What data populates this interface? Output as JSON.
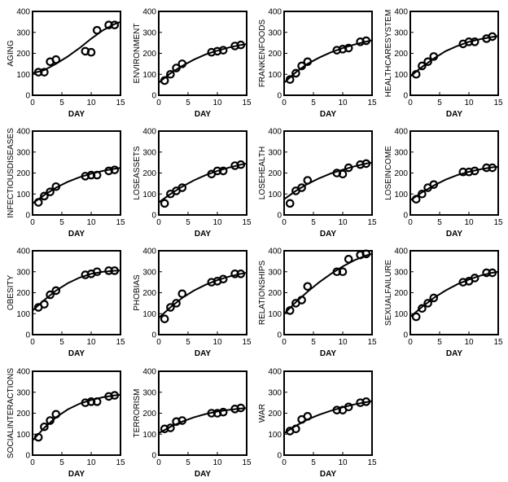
{
  "chart_data": [
    {
      "type": "scatter",
      "ylabel": "AGING",
      "xlabel": "DAY",
      "xlim": [
        0,
        15
      ],
      "ylim": [
        0,
        400
      ],
      "xticks": [
        0,
        5,
        10,
        15
      ],
      "yticks": [
        0,
        100,
        200,
        300,
        400
      ],
      "points": [
        [
          1,
          110
        ],
        [
          2,
          110
        ],
        [
          3,
          160
        ],
        [
          4,
          170
        ],
        [
          9,
          210
        ],
        [
          10,
          205
        ],
        [
          11,
          310
        ],
        [
          13,
          335
        ],
        [
          14,
          335
        ]
      ],
      "fit": [
        [
          0,
          105
        ],
        [
          2,
          120
        ],
        [
          4,
          150
        ],
        [
          6,
          185
        ],
        [
          8,
          225
        ],
        [
          10,
          270
        ],
        [
          12,
          310
        ],
        [
          14,
          340
        ],
        [
          15,
          350
        ]
      ]
    },
    {
      "type": "scatter",
      "ylabel": "ENVIRONMENT",
      "xlabel": "DAY",
      "xlim": [
        0,
        15
      ],
      "ylim": [
        0,
        400
      ],
      "xticks": [
        0,
        5,
        10,
        15
      ],
      "yticks": [
        0,
        100,
        200,
        300,
        400
      ],
      "points": [
        [
          1,
          70
        ],
        [
          2,
          100
        ],
        [
          3,
          130
        ],
        [
          4,
          150
        ],
        [
          9,
          205
        ],
        [
          10,
          210
        ],
        [
          11,
          215
        ],
        [
          13,
          235
        ],
        [
          14,
          240
        ]
      ],
      "fit": [
        [
          0,
          60
        ],
        [
          2,
          105
        ],
        [
          4,
          140
        ],
        [
          6,
          170
        ],
        [
          8,
          195
        ],
        [
          10,
          213
        ],
        [
          12,
          228
        ],
        [
          14,
          240
        ],
        [
          15,
          244
        ]
      ]
    },
    {
      "type": "scatter",
      "ylabel": "FRANKENFOODS",
      "xlabel": "DAY",
      "xlim": [
        0,
        15
      ],
      "ylim": [
        0,
        400
      ],
      "xticks": [
        0,
        5,
        10,
        15
      ],
      "yticks": [
        0,
        100,
        200,
        300,
        400
      ],
      "points": [
        [
          1,
          75
        ],
        [
          2,
          105
        ],
        [
          3,
          140
        ],
        [
          4,
          160
        ],
        [
          9,
          215
        ],
        [
          10,
          220
        ],
        [
          11,
          225
        ],
        [
          13,
          255
        ],
        [
          14,
          260
        ]
      ],
      "fit": [
        [
          0,
          60
        ],
        [
          2,
          110
        ],
        [
          4,
          150
        ],
        [
          6,
          180
        ],
        [
          8,
          205
        ],
        [
          10,
          225
        ],
        [
          12,
          242
        ],
        [
          14,
          256
        ],
        [
          15,
          262
        ]
      ]
    },
    {
      "type": "scatter",
      "ylabel": "HEALTHCARESYSTEM",
      "xlabel": "DAY",
      "xlim": [
        0,
        15
      ],
      "ylim": [
        0,
        400
      ],
      "xticks": [
        0,
        5,
        10,
        15
      ],
      "yticks": [
        0,
        100,
        200,
        300,
        400
      ],
      "points": [
        [
          1,
          100
        ],
        [
          2,
          140
        ],
        [
          3,
          160
        ],
        [
          4,
          185
        ],
        [
          9,
          245
        ],
        [
          10,
          255
        ],
        [
          11,
          255
        ],
        [
          13,
          270
        ],
        [
          14,
          280
        ]
      ],
      "fit": [
        [
          0,
          90
        ],
        [
          2,
          135
        ],
        [
          4,
          175
        ],
        [
          6,
          210
        ],
        [
          8,
          235
        ],
        [
          10,
          255
        ],
        [
          12,
          268
        ],
        [
          14,
          278
        ],
        [
          15,
          282
        ]
      ]
    },
    {
      "type": "scatter",
      "ylabel": "INFECTIOUSDISEASES",
      "xlabel": "DAY",
      "xlim": [
        0,
        15
      ],
      "ylim": [
        0,
        400
      ],
      "xticks": [
        0,
        5,
        10,
        15
      ],
      "yticks": [
        0,
        100,
        200,
        300,
        400
      ],
      "points": [
        [
          1,
          60
        ],
        [
          2,
          90
        ],
        [
          3,
          110
        ],
        [
          4,
          135
        ],
        [
          9,
          185
        ],
        [
          10,
          190
        ],
        [
          11,
          190
        ],
        [
          13,
          210
        ],
        [
          14,
          215
        ]
      ],
      "fit": [
        [
          0,
          55
        ],
        [
          2,
          95
        ],
        [
          4,
          130
        ],
        [
          6,
          158
        ],
        [
          8,
          180
        ],
        [
          10,
          197
        ],
        [
          12,
          210
        ],
        [
          14,
          220
        ],
        [
          15,
          224
        ]
      ]
    },
    {
      "type": "scatter",
      "ylabel": "LOSEASSETS",
      "xlabel": "DAY",
      "xlim": [
        0,
        15
      ],
      "ylim": [
        0,
        400
      ],
      "xticks": [
        0,
        5,
        10,
        15
      ],
      "yticks": [
        0,
        100,
        200,
        300,
        400
      ],
      "points": [
        [
          1,
          55
        ],
        [
          2,
          100
        ],
        [
          3,
          115
        ],
        [
          4,
          130
        ],
        [
          9,
          195
        ],
        [
          10,
          210
        ],
        [
          11,
          210
        ],
        [
          13,
          235
        ],
        [
          14,
          240
        ]
      ],
      "fit": [
        [
          0,
          60
        ],
        [
          2,
          100
        ],
        [
          4,
          135
        ],
        [
          6,
          165
        ],
        [
          8,
          190
        ],
        [
          10,
          210
        ],
        [
          12,
          226
        ],
        [
          14,
          240
        ],
        [
          15,
          245
        ]
      ]
    },
    {
      "type": "scatter",
      "ylabel": "LOSEHEALTH",
      "xlabel": "DAY",
      "xlim": [
        0,
        15
      ],
      "ylim": [
        0,
        400
      ],
      "xticks": [
        0,
        5,
        10,
        15
      ],
      "yticks": [
        0,
        100,
        200,
        300,
        400
      ],
      "points": [
        [
          1,
          55
        ],
        [
          2,
          115
        ],
        [
          3,
          130
        ],
        [
          4,
          165
        ],
        [
          9,
          200
        ],
        [
          10,
          195
        ],
        [
          11,
          225
        ],
        [
          13,
          240
        ],
        [
          14,
          245
        ]
      ],
      "fit": [
        [
          0,
          75
        ],
        [
          2,
          115
        ],
        [
          4,
          148
        ],
        [
          6,
          175
        ],
        [
          8,
          198
        ],
        [
          10,
          216
        ],
        [
          12,
          232
        ],
        [
          14,
          245
        ],
        [
          15,
          250
        ]
      ]
    },
    {
      "type": "scatter",
      "ylabel": "LOSEINCOME",
      "xlabel": "DAY",
      "xlim": [
        0,
        15
      ],
      "ylim": [
        0,
        400
      ],
      "xticks": [
        0,
        5,
        10,
        15
      ],
      "yticks": [
        0,
        100,
        200,
        300,
        400
      ],
      "points": [
        [
          1,
          75
        ],
        [
          2,
          100
        ],
        [
          3,
          130
        ],
        [
          4,
          145
        ],
        [
          9,
          205
        ],
        [
          10,
          205
        ],
        [
          11,
          210
        ],
        [
          13,
          225
        ],
        [
          14,
          225
        ]
      ],
      "fit": [
        [
          0,
          70
        ],
        [
          2,
          108
        ],
        [
          4,
          140
        ],
        [
          6,
          168
        ],
        [
          8,
          190
        ],
        [
          10,
          206
        ],
        [
          12,
          218
        ],
        [
          14,
          227
        ],
        [
          15,
          230
        ]
      ]
    },
    {
      "type": "scatter",
      "ylabel": "OBESITY",
      "xlabel": "DAY",
      "xlim": [
        0,
        15
      ],
      "ylim": [
        0,
        400
      ],
      "xticks": [
        0,
        5,
        10,
        15
      ],
      "yticks": [
        0,
        100,
        200,
        300,
        400
      ],
      "points": [
        [
          1,
          130
        ],
        [
          2,
          145
        ],
        [
          3,
          190
        ],
        [
          4,
          210
        ],
        [
          9,
          285
        ],
        [
          10,
          290
        ],
        [
          11,
          300
        ],
        [
          13,
          305
        ],
        [
          14,
          305
        ]
      ],
      "fit": [
        [
          0,
          115
        ],
        [
          2,
          165
        ],
        [
          4,
          210
        ],
        [
          6,
          245
        ],
        [
          8,
          272
        ],
        [
          10,
          290
        ],
        [
          12,
          300
        ],
        [
          14,
          305
        ],
        [
          15,
          306
        ]
      ]
    },
    {
      "type": "scatter",
      "ylabel": "PHOBIAS",
      "xlabel": "DAY",
      "xlim": [
        0,
        15
      ],
      "ylim": [
        0,
        400
      ],
      "xticks": [
        0,
        5,
        10,
        15
      ],
      "yticks": [
        0,
        100,
        200,
        300,
        400
      ],
      "points": [
        [
          1,
          75
        ],
        [
          2,
          130
        ],
        [
          3,
          150
        ],
        [
          4,
          195
        ],
        [
          9,
          250
        ],
        [
          10,
          255
        ],
        [
          11,
          265
        ],
        [
          13,
          290
        ],
        [
          14,
          290
        ]
      ],
      "fit": [
        [
          0,
          80
        ],
        [
          2,
          130
        ],
        [
          4,
          175
        ],
        [
          6,
          210
        ],
        [
          8,
          238
        ],
        [
          10,
          260
        ],
        [
          12,
          277
        ],
        [
          14,
          290
        ],
        [
          15,
          295
        ]
      ]
    },
    {
      "type": "scatter",
      "ylabel": "RELATIONSHIPS",
      "xlabel": "DAY",
      "xlim": [
        0,
        15
      ],
      "ylim": [
        0,
        400
      ],
      "xticks": [
        0,
        5,
        10,
        15
      ],
      "yticks": [
        0,
        100,
        200,
        300,
        400
      ],
      "points": [
        [
          1,
          115
        ],
        [
          2,
          150
        ],
        [
          3,
          165
        ],
        [
          4,
          230
        ],
        [
          9,
          300
        ],
        [
          10,
          300
        ],
        [
          11,
          360
        ],
        [
          13,
          380
        ],
        [
          14,
          385
        ]
      ],
      "fit": [
        [
          0,
          100
        ],
        [
          2,
          155
        ],
        [
          4,
          205
        ],
        [
          6,
          250
        ],
        [
          8,
          290
        ],
        [
          10,
          325
        ],
        [
          12,
          355
        ],
        [
          14,
          378
        ],
        [
          15,
          385
        ]
      ]
    },
    {
      "type": "scatter",
      "ylabel": "SEXUALFAILURE",
      "xlabel": "DAY",
      "xlim": [
        0,
        15
      ],
      "ylim": [
        0,
        400
      ],
      "xticks": [
        0,
        5,
        10,
        15
      ],
      "yticks": [
        0,
        100,
        200,
        300,
        400
      ],
      "points": [
        [
          1,
          85
        ],
        [
          2,
          125
        ],
        [
          3,
          150
        ],
        [
          4,
          175
        ],
        [
          9,
          250
        ],
        [
          10,
          255
        ],
        [
          11,
          270
        ],
        [
          13,
          295
        ],
        [
          14,
          295
        ]
      ],
      "fit": [
        [
          0,
          85
        ],
        [
          2,
          132
        ],
        [
          4,
          175
        ],
        [
          6,
          210
        ],
        [
          8,
          240
        ],
        [
          10,
          263
        ],
        [
          12,
          282
        ],
        [
          14,
          295
        ],
        [
          15,
          300
        ]
      ]
    },
    {
      "type": "scatter",
      "ylabel": "SOCIALINTERACTIONS",
      "xlabel": "DAY",
      "xlim": [
        0,
        15
      ],
      "ylim": [
        0,
        400
      ],
      "xticks": [
        0,
        5,
        10,
        15
      ],
      "yticks": [
        0,
        100,
        200,
        300,
        400
      ],
      "points": [
        [
          1,
          85
        ],
        [
          2,
          135
        ],
        [
          3,
          165
        ],
        [
          4,
          195
        ],
        [
          9,
          250
        ],
        [
          10,
          255
        ],
        [
          11,
          255
        ],
        [
          13,
          280
        ],
        [
          14,
          285
        ]
      ],
      "fit": [
        [
          0,
          70
        ],
        [
          2,
          130
        ],
        [
          4,
          180
        ],
        [
          6,
          218
        ],
        [
          8,
          245
        ],
        [
          10,
          263
        ],
        [
          12,
          276
        ],
        [
          14,
          285
        ],
        [
          15,
          288
        ]
      ]
    },
    {
      "type": "scatter",
      "ylabel": "TERRORISM",
      "xlabel": "DAY",
      "xlim": [
        0,
        15
      ],
      "ylim": [
        0,
        400
      ],
      "xticks": [
        0,
        5,
        10,
        15
      ],
      "yticks": [
        0,
        100,
        200,
        300,
        400
      ],
      "points": [
        [
          1,
          125
        ],
        [
          2,
          130
        ],
        [
          3,
          160
        ],
        [
          4,
          165
        ],
        [
          9,
          200
        ],
        [
          10,
          200
        ],
        [
          11,
          205
        ],
        [
          13,
          220
        ],
        [
          14,
          225
        ]
      ],
      "fit": [
        [
          0,
          105
        ],
        [
          2,
          135
        ],
        [
          4,
          160
        ],
        [
          6,
          180
        ],
        [
          8,
          196
        ],
        [
          10,
          208
        ],
        [
          12,
          216
        ],
        [
          14,
          222
        ],
        [
          15,
          224
        ]
      ]
    },
    {
      "type": "scatter",
      "ylabel": "WAR",
      "xlabel": "DAY",
      "xlim": [
        0,
        15
      ],
      "ylim": [
        0,
        400
      ],
      "xticks": [
        0,
        5,
        10,
        15
      ],
      "yticks": [
        0,
        100,
        200,
        300,
        400
      ],
      "points": [
        [
          1,
          115
        ],
        [
          2,
          125
        ],
        [
          3,
          170
        ],
        [
          4,
          185
        ],
        [
          9,
          215
        ],
        [
          10,
          215
        ],
        [
          11,
          230
        ],
        [
          13,
          250
        ],
        [
          14,
          255
        ]
      ],
      "fit": [
        [
          0,
          105
        ],
        [
          2,
          140
        ],
        [
          4,
          170
        ],
        [
          6,
          193
        ],
        [
          8,
          212
        ],
        [
          10,
          228
        ],
        [
          12,
          242
        ],
        [
          14,
          253
        ],
        [
          15,
          257
        ]
      ]
    }
  ]
}
